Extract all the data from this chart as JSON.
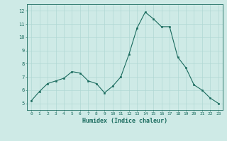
{
  "x": [
    0,
    1,
    2,
    3,
    4,
    5,
    6,
    7,
    8,
    9,
    10,
    11,
    12,
    13,
    14,
    15,
    16,
    17,
    18,
    19,
    20,
    21,
    22,
    23
  ],
  "y": [
    5.2,
    5.9,
    6.5,
    6.7,
    6.9,
    7.4,
    7.3,
    6.7,
    6.5,
    5.8,
    6.3,
    7.0,
    8.7,
    10.7,
    11.9,
    11.4,
    10.8,
    10.8,
    8.5,
    7.7,
    6.4,
    6.0,
    5.4,
    5.0
  ],
  "xlabel": "Humidex (Indice chaleur)",
  "ylabel": "",
  "title": "",
  "line_color": "#1a6b5e",
  "marker_color": "#1a6b5e",
  "bg_color": "#ceeae6",
  "grid_color": "#b0d8d4",
  "axis_color": "#1a6b5e",
  "tick_color": "#1a6b5e",
  "label_color": "#1a6b5e",
  "ylim": [
    4.5,
    12.5
  ],
  "xlim": [
    -0.5,
    23.5
  ],
  "yticks": [
    5,
    6,
    7,
    8,
    9,
    10,
    11,
    12
  ],
  "xticks": [
    0,
    1,
    2,
    3,
    4,
    5,
    6,
    7,
    8,
    9,
    10,
    11,
    12,
    13,
    14,
    15,
    16,
    17,
    18,
    19,
    20,
    21,
    22,
    23
  ]
}
